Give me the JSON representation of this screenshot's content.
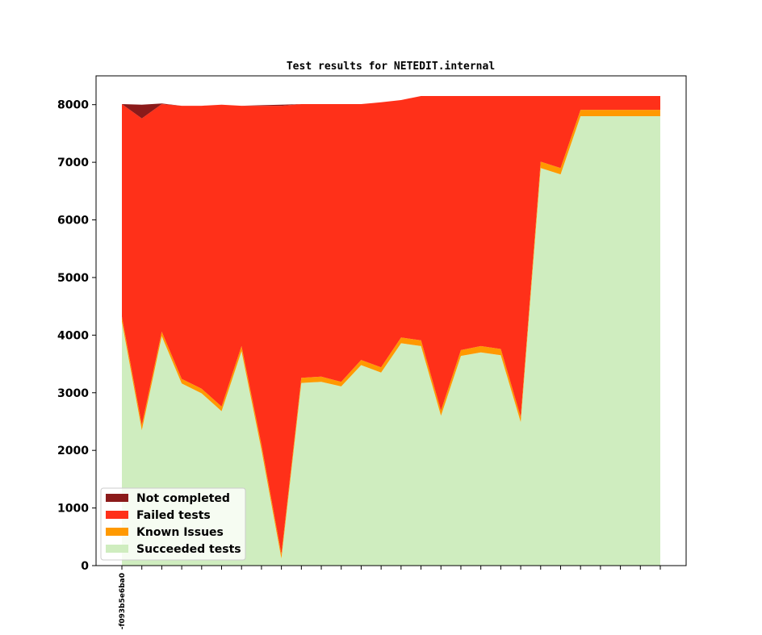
{
  "chart_data": {
    "type": "area",
    "title": "Test results for NETEDIT.internal",
    "xlabel": "",
    "ylabel": "",
    "ylim": [
      0,
      8500
    ],
    "yticks": [
      0,
      1000,
      2000,
      3000,
      4000,
      5000,
      6000,
      7000,
      8000
    ],
    "ytick_labels": [
      "0",
      "1000",
      "2000",
      "3000",
      "4000",
      "5000",
      "6000",
      "7000",
      "8000"
    ],
    "x_count": 28,
    "x_tick_labels": [
      "-f093b5e6ba0"
    ],
    "stacked": true,
    "grid": false,
    "legend_position": "lower-left",
    "series": [
      {
        "name": "Succeeded tests",
        "color": "#cfedbf",
        "values": [
          4230,
          2350,
          3980,
          3160,
          2990,
          2680,
          3720,
          2010,
          120,
          3170,
          3190,
          3110,
          3480,
          3350,
          3860,
          3810,
          2600,
          3640,
          3700,
          3650,
          2490,
          6900,
          6790,
          7800,
          7800,
          7800,
          7800,
          7800
        ]
      },
      {
        "name": "Known Issues",
        "color": "#ff9900",
        "values": [
          90,
          90,
          80,
          80,
          80,
          80,
          90,
          90,
          80,
          90,
          90,
          80,
          90,
          90,
          100,
          100,
          90,
          100,
          110,
          110,
          90,
          110,
          110,
          110,
          110,
          110,
          110,
          110
        ]
      },
      {
        "name": "Failed tests",
        "color": "#ff3019",
        "values": [
          3690,
          5320,
          3950,
          4740,
          4910,
          5240,
          4170,
          5880,
          7780,
          4750,
          4730,
          4820,
          4440,
          4600,
          4120,
          4240,
          5460,
          4410,
          4340,
          4390,
          5570,
          1140,
          1250,
          240,
          240,
          240,
          240,
          240
        ]
      },
      {
        "name": "Not completed",
        "color": "#8b1a1a",
        "values": [
          0,
          240,
          10,
          0,
          0,
          0,
          0,
          10,
          20,
          0,
          0,
          0,
          0,
          0,
          0,
          0,
          0,
          0,
          0,
          0,
          0,
          0,
          0,
          0,
          0,
          0,
          0,
          0
        ]
      }
    ],
    "legend_order": [
      "Not completed",
      "Failed tests",
      "Known Issues",
      "Succeeded tests"
    ]
  }
}
